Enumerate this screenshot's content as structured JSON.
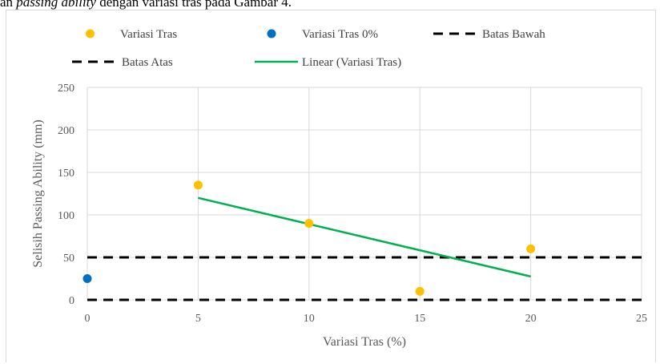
{
  "caption": {
    "prefix": "an ",
    "italic": "passing ability",
    "suffix": " dengan variasi tras pada Gambar 4."
  },
  "chart_data": {
    "type": "scatter",
    "xlabel": "Variasi Tras (%)",
    "ylabel": "Selisih Passing Ability (mm)",
    "xlim": [
      0,
      25
    ],
    "ylim": [
      0,
      250
    ],
    "xticks": [
      0,
      5,
      10,
      15,
      20,
      25
    ],
    "yticks": [
      0,
      50,
      100,
      150,
      200,
      250
    ],
    "grid": "horizontal and vertical major gridlines",
    "legend_position": "top",
    "series": [
      {
        "name": "Variasi Tras",
        "kind": "scatter",
        "color": "#FFC000",
        "points": [
          [
            5,
            135
          ],
          [
            10,
            90
          ],
          [
            15,
            10
          ],
          [
            20,
            60
          ]
        ]
      },
      {
        "name": "Variasi Tras 0%",
        "kind": "scatter",
        "color": "#0070C0",
        "points": [
          [
            0,
            25
          ]
        ]
      },
      {
        "name": "Batas Bawah",
        "kind": "dashed-line",
        "color": "#000000",
        "points": [
          [
            0,
            0
          ],
          [
            25,
            0
          ]
        ]
      },
      {
        "name": "Batas Atas",
        "kind": "dashed-line",
        "color": "#000000",
        "points": [
          [
            0,
            50
          ],
          [
            25,
            50
          ]
        ]
      },
      {
        "name": "Linear (Variasi Tras)",
        "kind": "line",
        "color": "#00B050",
        "points": [
          [
            5,
            120
          ],
          [
            20,
            27.5
          ]
        ]
      }
    ]
  }
}
